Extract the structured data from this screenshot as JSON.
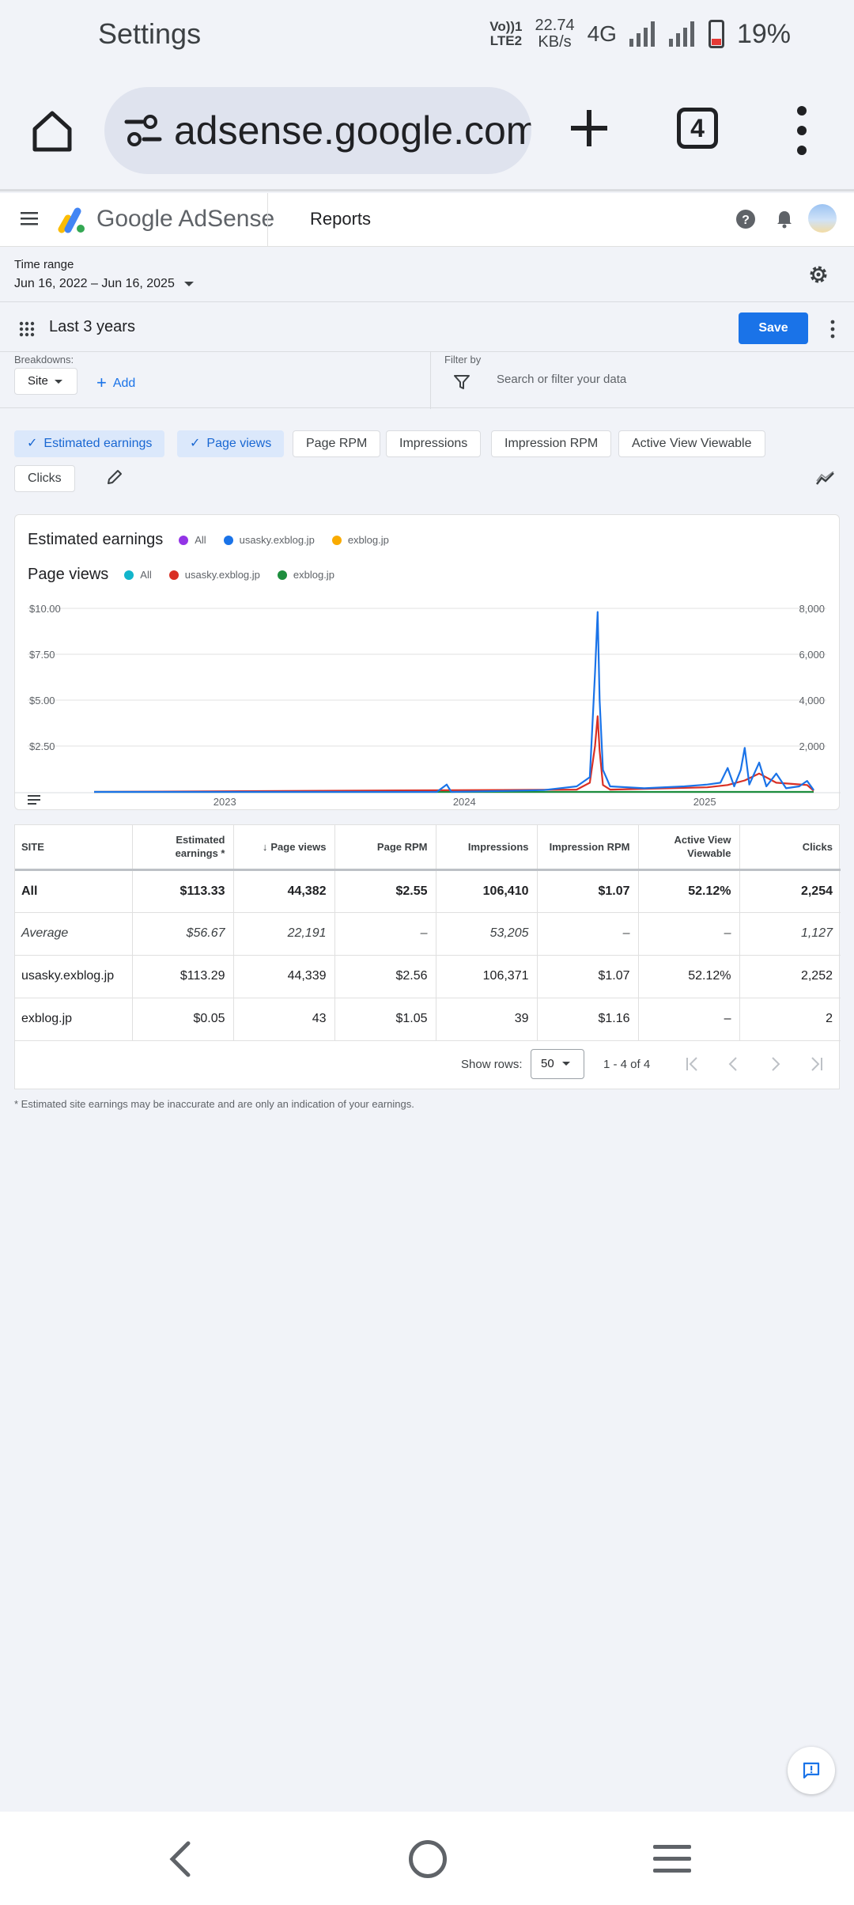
{
  "status_bar": {
    "title": "Settings",
    "volte_top": "Vo))1",
    "volte_bottom": "LTE2",
    "speed_value": "22.74",
    "speed_unit": "KB/s",
    "network": "4G",
    "battery_percent": "19%"
  },
  "browser": {
    "url": "adsense.google.com/adsense",
    "tab_count": "4"
  },
  "app_header": {
    "brand": "Google AdSense",
    "page": "Reports"
  },
  "time_range": {
    "label": "Time range",
    "value": "Jun 16, 2022 – Jun 16, 2025"
  },
  "report": {
    "title": "Last 3 years",
    "save_label": "Save"
  },
  "breakdowns": {
    "label": "Breakdowns:",
    "site_chip": "Site",
    "add_label": "Add"
  },
  "filter": {
    "label": "Filter by",
    "placeholder": "Search or filter your data"
  },
  "metric_chips": [
    {
      "label": "Estimated earnings",
      "selected": true
    },
    {
      "label": "Page views",
      "selected": true
    },
    {
      "label": "Page RPM",
      "selected": false
    },
    {
      "label": "Impressions",
      "selected": false
    },
    {
      "label": "Impression RPM",
      "selected": false
    },
    {
      "label": "Active View Viewable",
      "selected": false
    },
    {
      "label": "Clicks",
      "selected": false
    }
  ],
  "chart_data": {
    "type": "line",
    "legend_groups": [
      {
        "title": "Estimated earnings",
        "items": [
          {
            "name": "All",
            "color": "#9334e6"
          },
          {
            "name": "usasky.exblog.jp",
            "color": "#1a73e8"
          },
          {
            "name": "exblog.jp",
            "color": "#f9ab00"
          }
        ]
      },
      {
        "title": "Page views",
        "items": [
          {
            "name": "All",
            "color": "#12b5cb"
          },
          {
            "name": "usasky.exblog.jp",
            "color": "#d93025"
          },
          {
            "name": "exblog.jp",
            "color": "#1e8e3e"
          }
        ]
      }
    ],
    "x_ticks": [
      "2023",
      "2024",
      "2025"
    ],
    "x_range": [
      "2022-06-16",
      "2025-06-16"
    ],
    "left_axis": {
      "ticks": [
        "$2.50",
        "$5.00",
        "$7.50",
        "$10.00"
      ],
      "values": [
        2.5,
        5,
        7.5,
        10
      ],
      "range": [
        0,
        10
      ]
    },
    "right_axis": {
      "ticks": [
        "2,000",
        "4,000",
        "6,000",
        "8,000"
      ],
      "values": [
        2000,
        4000,
        6000,
        8000
      ],
      "range": [
        0,
        8000
      ]
    },
    "series": [
      {
        "name": "usasky.exblog.jp",
        "metric": "Estimated earnings",
        "color": "#1a73e8",
        "axis": "left",
        "points": [
          [
            "2022-06-16",
            0
          ],
          [
            "2023-11-20",
            0
          ],
          [
            "2023-12-05",
            0.4
          ],
          [
            "2023-12-12",
            0
          ],
          [
            "2024-03-01",
            0.05
          ],
          [
            "2024-05-01",
            0.1
          ],
          [
            "2024-06-20",
            0.3
          ],
          [
            "2024-07-10",
            0.8
          ],
          [
            "2024-07-18",
            6.5
          ],
          [
            "2024-07-22",
            9.8
          ],
          [
            "2024-07-25",
            5.0
          ],
          [
            "2024-07-30",
            1.2
          ],
          [
            "2024-08-10",
            0.3
          ],
          [
            "2024-10-01",
            0.2
          ],
          [
            "2024-12-01",
            0.3
          ],
          [
            "2025-01-05",
            0.4
          ],
          [
            "2025-01-25",
            0.5
          ],
          [
            "2025-02-05",
            1.3
          ],
          [
            "2025-02-15",
            0.3
          ],
          [
            "2025-02-25",
            1.2
          ],
          [
            "2025-03-03",
            2.4
          ],
          [
            "2025-03-10",
            0.4
          ],
          [
            "2025-03-25",
            1.6
          ],
          [
            "2025-04-05",
            0.3
          ],
          [
            "2025-04-20",
            1.0
          ],
          [
            "2025-05-05",
            0.2
          ],
          [
            "2025-05-25",
            0.3
          ],
          [
            "2025-06-06",
            0.6
          ],
          [
            "2025-06-16",
            0.1
          ]
        ]
      },
      {
        "name": "usasky.exblog.jp",
        "metric": "Page views",
        "color": "#d93025",
        "axis": "right",
        "points": [
          [
            "2022-06-16",
            0
          ],
          [
            "2024-06-20",
            100
          ],
          [
            "2024-07-10",
            400
          ],
          [
            "2024-07-18",
            2000
          ],
          [
            "2024-07-22",
            3300
          ],
          [
            "2024-07-25",
            1800
          ],
          [
            "2024-07-30",
            300
          ],
          [
            "2024-08-10",
            100
          ],
          [
            "2025-01-05",
            200
          ],
          [
            "2025-02-05",
            300
          ],
          [
            "2025-03-03",
            500
          ],
          [
            "2025-03-25",
            800
          ],
          [
            "2025-04-20",
            400
          ],
          [
            "2025-06-06",
            300
          ],
          [
            "2025-06-16",
            50
          ]
        ]
      },
      {
        "name": "exblog.jp",
        "metric": "Page views",
        "color": "#1e8e3e",
        "axis": "right",
        "points": [
          [
            "2022-06-16",
            0
          ],
          [
            "2025-06-16",
            0
          ]
        ]
      }
    ]
  },
  "table": {
    "columns": [
      "SITE",
      "Estimated earnings *",
      "Page views",
      "Page RPM",
      "Impressions",
      "Impression RPM",
      "Active View Viewable",
      "Clicks"
    ],
    "rows": [
      {
        "type": "all",
        "cells": [
          "All",
          "$113.33",
          "44,382",
          "$2.55",
          "106,410",
          "$1.07",
          "52.12%",
          "2,254"
        ]
      },
      {
        "type": "avg",
        "cells": [
          "Average",
          "$56.67",
          "22,191",
          "–",
          "53,205",
          "–",
          "–",
          "1,127"
        ]
      },
      {
        "type": "row",
        "cells": [
          "usasky.exblog.jp",
          "$113.29",
          "44,339",
          "$2.56",
          "106,371",
          "$1.07",
          "52.12%",
          "2,252"
        ]
      },
      {
        "type": "row",
        "cells": [
          "exblog.jp",
          "$0.05",
          "43",
          "$1.05",
          "39",
          "$1.16",
          "–",
          "2"
        ]
      }
    ],
    "show_rows_label": "Show rows:",
    "rows_per_page": "50",
    "range_label": "1 - 4 of 4"
  },
  "footnote": "* Estimated site earnings may be inaccurate and are only an indication of your earnings."
}
